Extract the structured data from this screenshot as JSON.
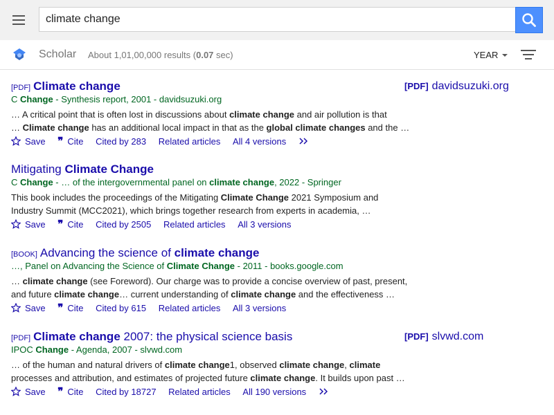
{
  "search": {
    "query": "climate change"
  },
  "header": {
    "brand": "Scholar",
    "results_prefix": "About 1,01,00,000 results (",
    "results_time": "0.07",
    "results_suffix": " sec)",
    "year_label": "YEAR"
  },
  "icons": {
    "menu": "hamburger-menu-icon",
    "search": "magnifier-icon",
    "logo": "scholar-cap-icon",
    "filter": "filter-lines-icon",
    "save": "star-icon",
    "cite": "quote-icon",
    "more": "double-chevron-icon"
  },
  "colors": {
    "link": "#1a0dab",
    "source": "#006621",
    "search_button": "#4d90fe"
  },
  "results": [
    {
      "type": "[PDF]",
      "title_pre": "",
      "title_bold": "Climate change",
      "title_post": "",
      "side_tag": "[PDF]",
      "side_domain": "davidsuzuki.org",
      "author_pre": "C ",
      "author_bold": "Change",
      "author_post": " - Synthesis report, 2001 - davidsuzuki.org",
      "snippet1_a": "… A critical point that is often lost in discussions about ",
      "snippet1_b": "climate change",
      "snippet1_c": " and air pollution is that",
      "snippet2_a": "… ",
      "snippet2_b": "Climate change",
      "snippet2_c": " has an additional local impact in that as the ",
      "snippet2_d": "global climate changes",
      "snippet2_e": " and the …",
      "save": "Save",
      "cite": "Cite",
      "cited_by": "Cited by 283",
      "related": "Related articles",
      "versions": "All 4 versions"
    },
    {
      "title_pre": "Mitigating ",
      "title_bold": "Climate Change",
      "author_pre": "C ",
      "author_bold": "Change",
      "author_mid": " - … of the intergovernmental panel on ",
      "author_bold2": "climate change",
      "author_post": ", 2022 - Springer",
      "snippet1_a": "This book includes the proceedings of the Mitigating ",
      "snippet1_b": "Climate Change",
      "snippet1_c": " 2021 Symposium and",
      "snippet2_a": "Industry Summit (MCC2021), which brings together research from experts in academia, …",
      "save": "Save",
      "cite": "Cite",
      "cited_by": "Cited by 2505",
      "related": "Related articles",
      "versions": "All 3 versions"
    },
    {
      "type": "[BOOK]",
      "title_pre": "Advancing the science of ",
      "title_bold": "climate change",
      "author_pre": "…, Panel on Advancing the Science of ",
      "author_bold": "Climate Change",
      "author_post": " - 2011 - books.google.com",
      "snippet1_a": "… ",
      "snippet1_b": "climate change",
      "snippet1_c": " (see Foreword). Our charge was to provide a concise overview of past, present,",
      "snippet2_a": "and future ",
      "snippet2_b": "climate change",
      "snippet2_c": "… current understanding of ",
      "snippet2_d": "climate change",
      "snippet2_e": " and the effectiveness …",
      "save": "Save",
      "cite": "Cite",
      "cited_by": "Cited by 615",
      "related": "Related articles",
      "versions": "All 3 versions"
    },
    {
      "type": "[PDF]",
      "title_bold": "Climate change",
      "title_post": " 2007: the physical science basis",
      "side_tag": "[PDF]",
      "side_domain": "slvwd.com",
      "author_pre": "IPOC ",
      "author_bold": "Change",
      "author_post": " - Agenda, 2007 - slvwd.com",
      "snippet1_a": "… of the human and natural drivers of ",
      "snippet1_b": "climate change",
      "snippet1_c": "1, observed ",
      "snippet1_d": "climate change",
      "snippet1_e": ", ",
      "snippet1_f": "climate",
      "snippet2_a": "processes and attribution, and estimates of projected future ",
      "snippet2_b": "climate change",
      "snippet2_c": ". It builds upon past …",
      "save": "Save",
      "cite": "Cite",
      "cited_by": "Cited by 18727",
      "related": "Related articles",
      "versions": "All 190 versions"
    }
  ]
}
